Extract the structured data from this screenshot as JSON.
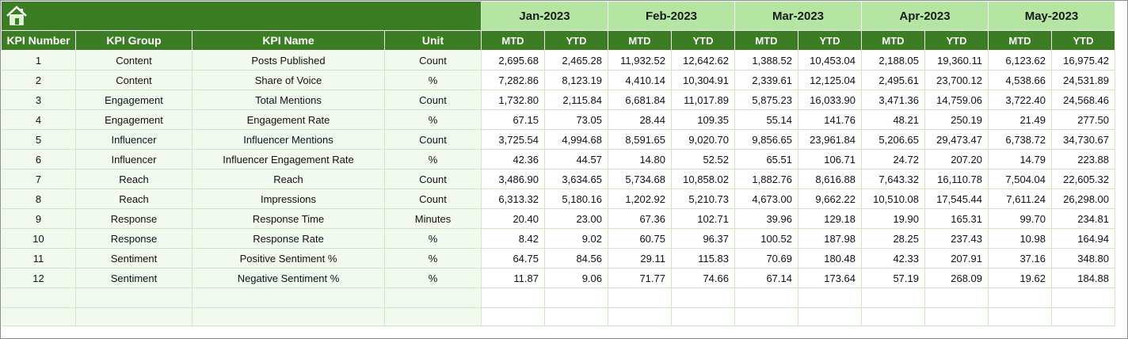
{
  "header": {
    "columns": [
      "KPI Number",
      "KPI Group",
      "KPI Name",
      "Unit"
    ],
    "months": [
      {
        "label": "Jan-2023",
        "sub": [
          "MTD",
          "YTD"
        ]
      },
      {
        "label": "Feb-2023",
        "sub": [
          "MTD",
          "YTD"
        ]
      },
      {
        "label": "Mar-2023",
        "sub": [
          "MTD",
          "YTD"
        ]
      },
      {
        "label": "Apr-2023",
        "sub": [
          "MTD",
          "YTD"
        ]
      },
      {
        "label": "May-2023",
        "sub": [
          "MTD",
          "YTD"
        ]
      }
    ]
  },
  "table": {
    "rows": [
      [
        "1",
        "Content",
        "Posts Published",
        "Count",
        "2,695.68",
        "2,465.28",
        "11,932.52",
        "12,642.62",
        "1,388.52",
        "10,453.04",
        "2,188.05",
        "19,360.11",
        "6,123.62",
        "16,975.42"
      ],
      [
        "2",
        "Content",
        "Share of Voice",
        "%",
        "7,282.86",
        "8,123.19",
        "4,410.14",
        "10,304.91",
        "2,339.61",
        "12,125.04",
        "2,495.61",
        "23,700.12",
        "4,538.66",
        "24,531.89"
      ],
      [
        "3",
        "Engagement",
        "Total Mentions",
        "Count",
        "1,732.80",
        "2,115.84",
        "6,681.84",
        "11,017.89",
        "5,875.23",
        "16,033.90",
        "3,471.36",
        "14,759.06",
        "3,722.40",
        "24,568.46"
      ],
      [
        "4",
        "Engagement",
        "Engagement Rate",
        "%",
        "67.15",
        "73.05",
        "28.44",
        "109.35",
        "55.14",
        "141.76",
        "48.21",
        "250.19",
        "21.49",
        "277.50"
      ],
      [
        "5",
        "Influencer",
        "Influencer Mentions",
        "Count",
        "3,725.54",
        "4,994.68",
        "8,591.65",
        "9,020.70",
        "9,856.65",
        "23,961.84",
        "5,206.65",
        "29,473.47",
        "6,738.72",
        "34,730.67"
      ],
      [
        "6",
        "Influencer",
        "Influencer Engagement Rate",
        "%",
        "42.36",
        "44.57",
        "14.80",
        "52.52",
        "65.51",
        "106.71",
        "24.72",
        "207.20",
        "14.79",
        "223.88"
      ],
      [
        "7",
        "Reach",
        "Reach",
        "Count",
        "3,486.90",
        "3,634.65",
        "5,734.68",
        "10,858.02",
        "1,882.76",
        "8,616.88",
        "7,643.32",
        "16,110.78",
        "7,504.04",
        "22,605.32"
      ],
      [
        "8",
        "Reach",
        "Impressions",
        "Count",
        "6,313.32",
        "5,180.16",
        "1,202.92",
        "5,210.73",
        "4,673.00",
        "9,662.22",
        "10,510.08",
        "17,545.44",
        "7,611.24",
        "26,298.00"
      ],
      [
        "9",
        "Response",
        "Response Time",
        "Minutes",
        "20.40",
        "23.00",
        "67.36",
        "102.71",
        "39.96",
        "129.18",
        "19.90",
        "165.31",
        "99.70",
        "234.81"
      ],
      [
        "10",
        "Response",
        "Response Rate",
        "%",
        "8.42",
        "9.02",
        "60.75",
        "96.37",
        "100.52",
        "187.98",
        "28.25",
        "237.43",
        "10.98",
        "164.94"
      ],
      [
        "11",
        "Sentiment",
        "Positive Sentiment %",
        "%",
        "64.75",
        "84.56",
        "29.11",
        "115.83",
        "70.69",
        "180.48",
        "42.33",
        "207.91",
        "37.16",
        "348.80"
      ],
      [
        "12",
        "Sentiment",
        "Negative Sentiment %",
        "%",
        "11.87",
        "9.06",
        "71.77",
        "74.66",
        "67.14",
        "173.64",
        "57.19",
        "268.09",
        "19.62",
        "184.88"
      ]
    ]
  }
}
